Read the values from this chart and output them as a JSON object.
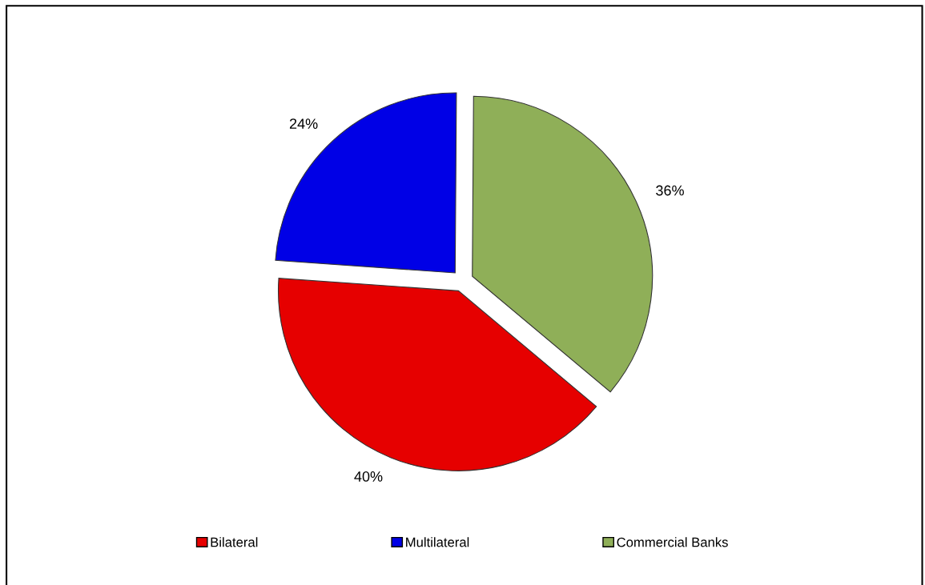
{
  "chart_data": {
    "type": "pie",
    "categories": [
      "Bilateral",
      "Multilateral",
      "Commercial Banks"
    ],
    "values": [
      40,
      24,
      36
    ],
    "colors": [
      "#e60000",
      "#0000e6",
      "#8faf58"
    ],
    "value_labels": [
      "40%",
      "24%",
      "36%"
    ],
    "legend": "bottom"
  }
}
